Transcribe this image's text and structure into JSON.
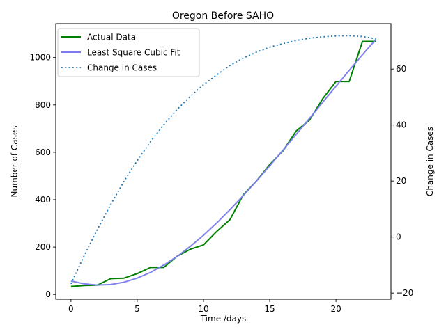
{
  "chart_data": {
    "type": "line",
    "title": "Oregon Before SAHO",
    "xlabel": "Time /days",
    "ylabel": "Number of Cases",
    "y2label": "Change in Cases",
    "xlim": [
      -1.15,
      24.15
    ],
    "ylim": [
      -20,
      1143
    ],
    "y2lim": [
      -22.2,
      76.2
    ],
    "x_ticks": [
      0,
      5,
      10,
      15,
      20
    ],
    "y_ticks": [
      0,
      200,
      400,
      600,
      800,
      1000
    ],
    "y2_ticks": [
      -20,
      0,
      20,
      40,
      60
    ],
    "grid": false,
    "legend_position": "upper-left",
    "x": [
      0,
      1,
      2,
      3,
      4,
      5,
      6,
      7,
      8,
      9,
      10,
      11,
      12,
      13,
      14,
      15,
      16,
      17,
      18,
      19,
      20,
      21,
      22,
      23
    ],
    "series": [
      {
        "name": "Actual Data",
        "axis": "left",
        "color": "#008000",
        "style": "solid",
        "values": [
          34,
          38,
          40,
          67,
          69,
          88,
          114,
          114,
          161,
          191,
          209,
          266,
          316,
          420,
          479,
          548,
          606,
          690,
          736,
          826,
          899,
          899,
          1068,
          1068
        ]
      },
      {
        "name": "Least Square Cubic Fit",
        "axis": "left",
        "color": "#7b7bee",
        "style": "solid",
        "values": [
          57,
          45,
          40,
          42,
          52,
          69,
          93,
          124,
          160,
          203,
          250,
          302,
          358,
          417,
          479,
          543,
          609,
          676,
          743,
          811,
          879,
          946,
          1012,
          1076
        ]
      },
      {
        "name": "Change in Cases",
        "axis": "right",
        "color": "#1f77b4",
        "style": "dotted",
        "values": [
          -16.7,
          -6.6,
          2.8,
          11.6,
          19.9,
          27.3,
          34.0,
          40.1,
          45.5,
          50.2,
          54.4,
          57.9,
          61.3,
          63.9,
          66.0,
          67.8,
          69.1,
          70.2,
          71.0,
          71.5,
          71.8,
          71.9,
          71.6,
          70.8
        ]
      }
    ]
  }
}
